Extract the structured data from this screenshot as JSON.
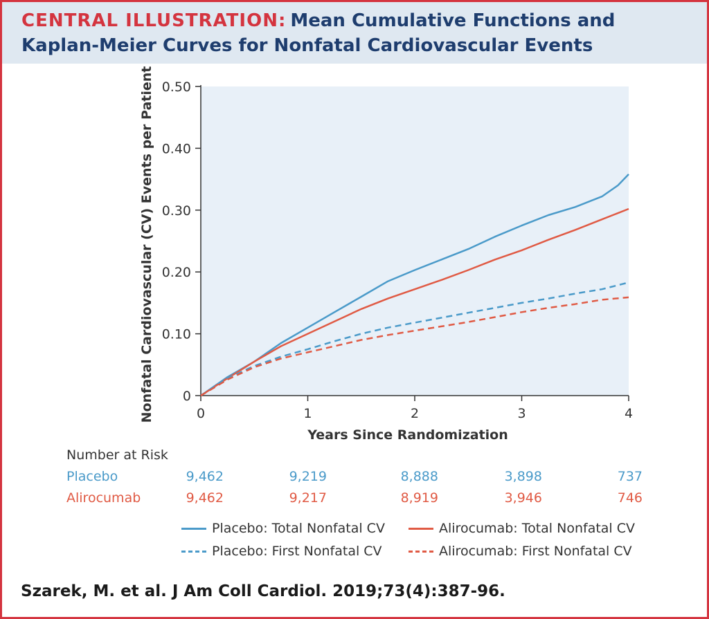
{
  "header": {
    "label": "CENTRAL ILLUSTRATION:",
    "title_part1": "Mean Cumulative Functions and",
    "title_part2": "Kaplan-Meier Curves for Nonfatal Cardiovascular Events"
  },
  "chart_data": {
    "type": "line",
    "xlabel": "Years Since Randomization",
    "ylabel": "Nonfatal Cardiovascular (CV) Events per Patient",
    "xlim": [
      0,
      4
    ],
    "ylim": [
      0,
      0.5
    ],
    "x_ticks": [
      "0",
      "1",
      "2",
      "3",
      "4"
    ],
    "y_ticks": [
      "0",
      "0.10",
      "0.20",
      "0.30",
      "0.40",
      "0.50"
    ],
    "series": [
      {
        "name": "Placebo: Total Nonfatal CV",
        "color": "#4a9ac9",
        "style": "solid",
        "x": [
          0,
          0.25,
          0.5,
          0.75,
          1.0,
          1.25,
          1.5,
          1.75,
          2.0,
          2.25,
          2.5,
          2.75,
          3.0,
          3.25,
          3.5,
          3.75,
          3.9,
          4.0
        ],
        "y": [
          0,
          0.03,
          0.055,
          0.085,
          0.11,
          0.135,
          0.16,
          0.185,
          0.203,
          0.22,
          0.237,
          0.257,
          0.275,
          0.292,
          0.305,
          0.322,
          0.34,
          0.358
        ]
      },
      {
        "name": "Alirocumab: Total Nonfatal CV",
        "color": "#e05a44",
        "style": "solid",
        "x": [
          0,
          0.25,
          0.5,
          0.75,
          1.0,
          1.25,
          1.5,
          1.75,
          2.0,
          2.25,
          2.5,
          2.75,
          3.0,
          3.25,
          3.5,
          3.75,
          4.0
        ],
        "y": [
          0,
          0.028,
          0.055,
          0.08,
          0.1,
          0.12,
          0.14,
          0.157,
          0.172,
          0.187,
          0.203,
          0.22,
          0.235,
          0.252,
          0.268,
          0.285,
          0.302
        ]
      },
      {
        "name": "Placebo: First Nonfatal CV",
        "color": "#4a9ac9",
        "style": "dashed",
        "x": [
          0,
          0.25,
          0.5,
          0.75,
          1.0,
          1.25,
          1.5,
          1.75,
          2.0,
          2.25,
          2.5,
          2.75,
          3.0,
          3.25,
          3.5,
          3.75,
          4.0
        ],
        "y": [
          0,
          0.028,
          0.048,
          0.063,
          0.075,
          0.088,
          0.1,
          0.11,
          0.118,
          0.126,
          0.134,
          0.142,
          0.15,
          0.157,
          0.165,
          0.172,
          0.183
        ]
      },
      {
        "name": "Alirocumab: First Nonfatal CV",
        "color": "#e05a44",
        "style": "dashed",
        "x": [
          0,
          0.25,
          0.5,
          0.75,
          1.0,
          1.25,
          1.5,
          1.75,
          2.0,
          2.25,
          2.5,
          2.75,
          3.0,
          3.25,
          3.5,
          3.75,
          4.0
        ],
        "y": [
          0,
          0.026,
          0.046,
          0.06,
          0.07,
          0.08,
          0.09,
          0.098,
          0.105,
          0.112,
          0.119,
          0.127,
          0.135,
          0.142,
          0.148,
          0.155,
          0.159
        ]
      }
    ]
  },
  "risk_table": {
    "title": "Number at Risk",
    "rows": [
      {
        "name": "Placebo",
        "values": [
          "9,462",
          "9,219",
          "8,888",
          "3,898",
          "737"
        ]
      },
      {
        "name": "Alirocumab",
        "values": [
          "9,462",
          "9,217",
          "8,919",
          "3,946",
          "746"
        ]
      }
    ]
  },
  "legend": [
    {
      "label": "Placebo: Total Nonfatal CV",
      "color": "#4a9ac9",
      "style": "solid"
    },
    {
      "label": "Alirocumab: Total Nonfatal CV",
      "color": "#e05a44",
      "style": "solid"
    },
    {
      "label": "Placebo: First Nonfatal CV",
      "color": "#4a9ac9",
      "style": "dashed"
    },
    {
      "label": "Alirocumab: First Nonfatal CV",
      "color": "#e05a44",
      "style": "dashed"
    }
  ],
  "citation": "Szarek, M. et al. J Am Coll Cardiol. 2019;73(4):387-96.",
  "colors": {
    "border": "#d4343f",
    "header_bg": "#dfe8f1",
    "title": "#1e3d6e",
    "plot_bg": "#e8f0f8"
  }
}
